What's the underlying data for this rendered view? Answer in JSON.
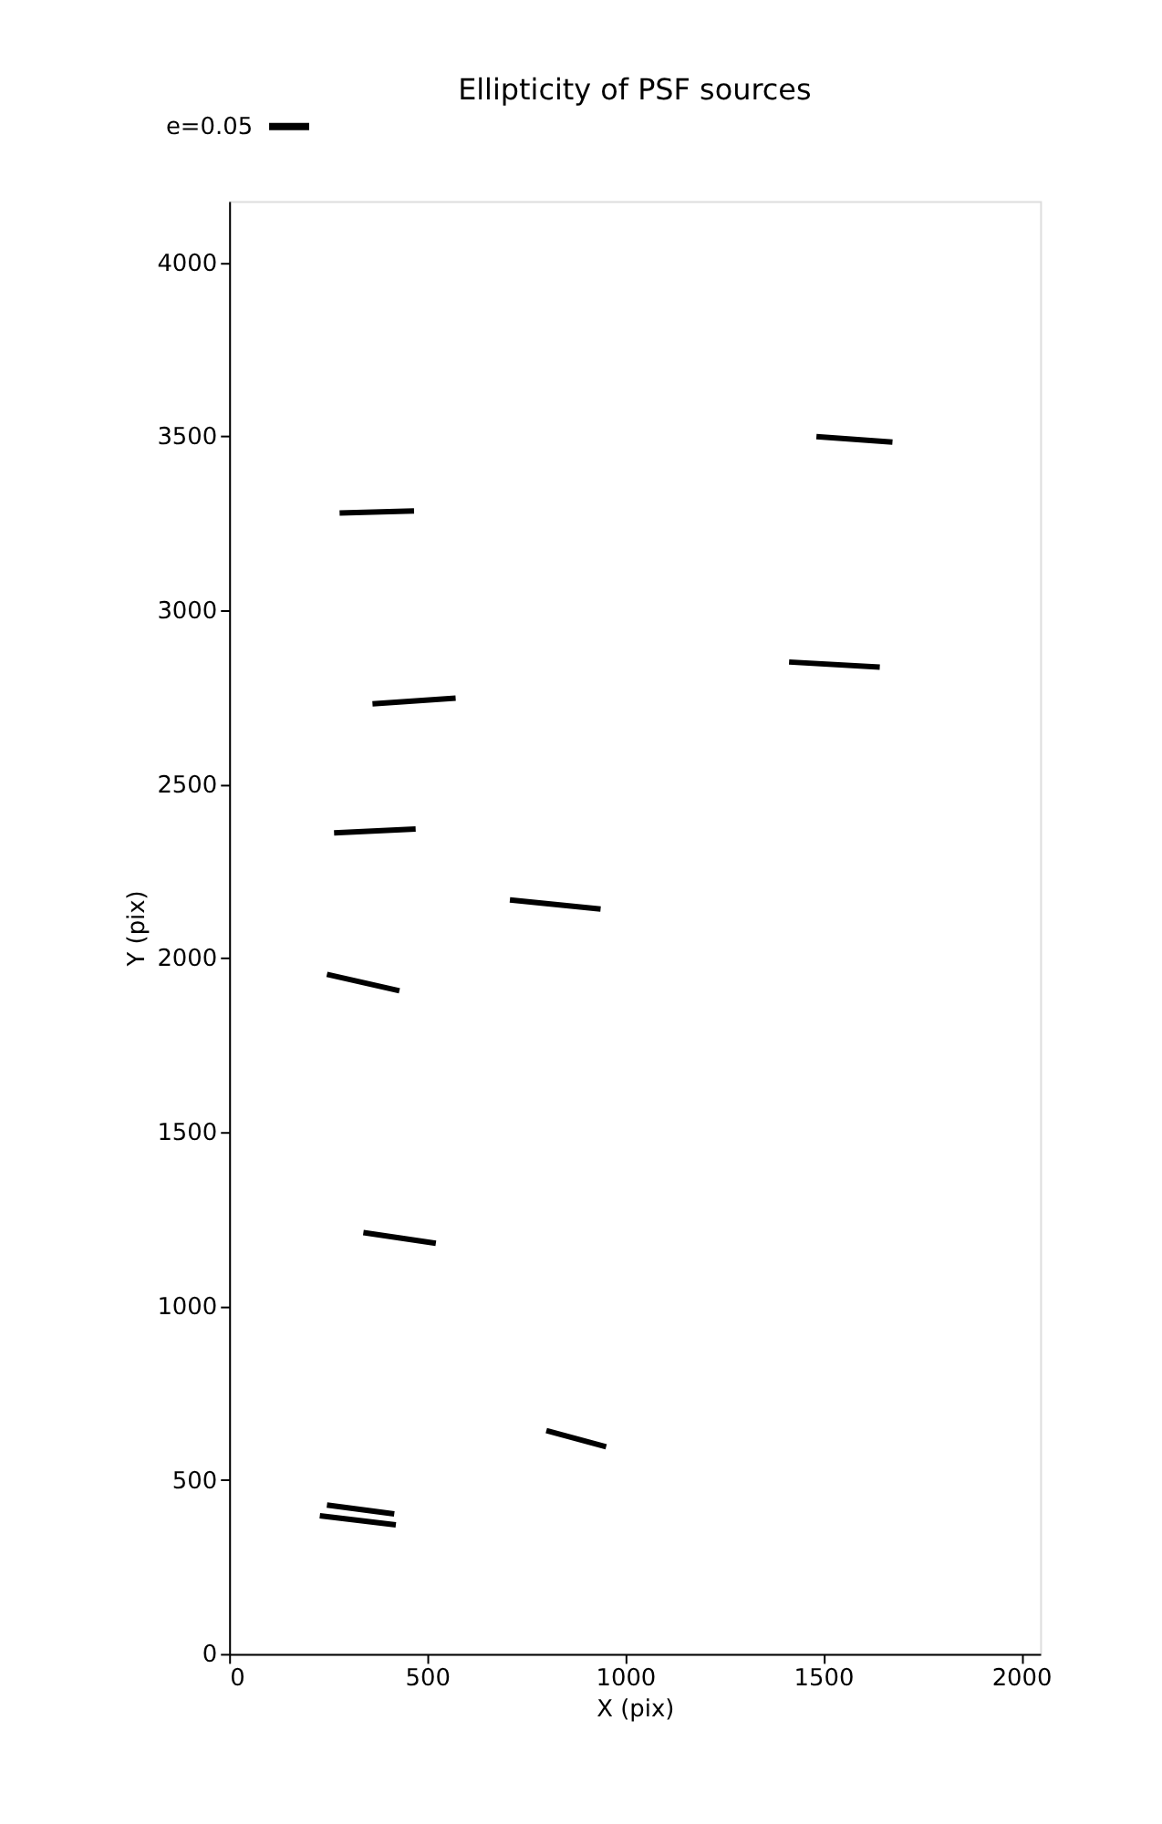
{
  "chart_data": {
    "type": "line",
    "title": "Ellipticity of PSF sources",
    "xlabel": "X (pix)",
    "ylabel": "Y (pix)",
    "xlim": [
      0,
      2048
    ],
    "ylim": [
      0,
      4176
    ],
    "xticks": [
      0,
      500,
      1000,
      1500,
      2000
    ],
    "yticks": [
      0,
      500,
      1000,
      1500,
      2000,
      2500,
      3000,
      3500,
      4000
    ],
    "grid": false,
    "legend": "top left",
    "marker": "none",
    "line_style": "solid",
    "series": [
      {
        "name": "e=0.05",
        "color": "#000000",
        "x": [
          1483,
          1675,
          null,
          279,
          467,
          null,
          1414,
          1643,
          null,
          362,
          572,
          null,
          265,
          471,
          null,
          709,
          938,
          null,
          247,
          430,
          null,
          339,
          522,
          null,
          801,
          952,
          null,
          247,
          417,
          null,
          229,
          421
        ],
        "values": [
          3499,
          3483,
          null,
          3279,
          3285,
          null,
          2851,
          2836,
          null,
          2731,
          2747,
          null,
          2360,
          2371,
          null,
          2167,
          2141,
          null,
          1953,
          1906,
          null,
          1211,
          1180,
          null,
          642,
          595,
          null,
          428,
          402,
          null,
          397,
          371
        ]
      }
    ]
  }
}
